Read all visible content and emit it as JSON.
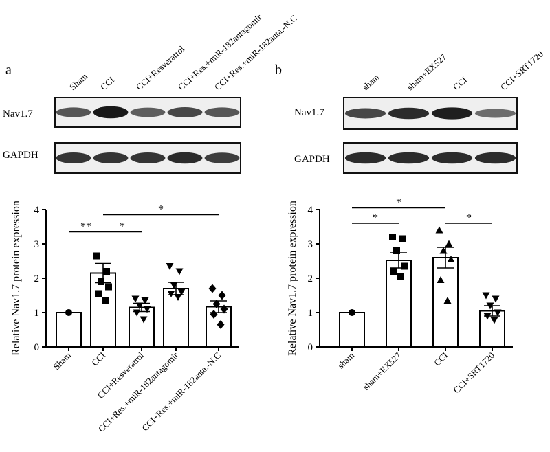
{
  "panels": {
    "a": {
      "letter": "a"
    },
    "b": {
      "letter": "b"
    }
  },
  "chart_data": [
    {
      "panel": "a",
      "type": "bar",
      "blot": {
        "lanes": [
          "Sham",
          "CCI",
          "CCI+Resveratrol",
          "CCI+Res.+miR-182antagomir",
          "CCI+Res.+miR-182anta.-N.C"
        ],
        "rows": [
          {
            "label": "Nav1.7",
            "intensities": [
              0.62,
              0.95,
              0.58,
              0.7,
              0.62
            ]
          },
          {
            "label": "GAPDH",
            "intensities": [
              0.8,
              0.8,
              0.8,
              0.85,
              0.75
            ]
          }
        ]
      },
      "categories": [
        "Sham",
        "CCI",
        "CCI+Resveratrol",
        "CCI+Res.+miR-182antagomir",
        "CCI+Res.+miR-182anta.-N.C"
      ],
      "values": [
        1.0,
        2.15,
        1.15,
        1.7,
        1.17
      ],
      "errors": [
        0.0,
        0.28,
        0.12,
        0.18,
        0.17
      ],
      "markers": [
        "circle",
        "square",
        "triangle-down",
        "triangle-down",
        "diamond"
      ],
      "points": [
        [
          1.0
        ],
        [
          2.65,
          2.2,
          1.9,
          1.75,
          1.55,
          1.35
        ],
        [
          1.4,
          1.35,
          1.2,
          1.1,
          1.0,
          0.8
        ],
        [
          2.35,
          2.2,
          1.8,
          1.6,
          1.55,
          1.45
        ],
        [
          1.7,
          1.5,
          1.25,
          1.1,
          0.95,
          0.65
        ]
      ],
      "ylabel": "Relative Nav1.7 protein expression",
      "ylim": [
        0,
        4
      ],
      "yticks": [
        "0",
        "1",
        "2",
        "3",
        "4"
      ],
      "significance": [
        {
          "from": 0,
          "to": 1,
          "level": 3.35,
          "label": "**"
        },
        {
          "from": 1,
          "to": 2,
          "level": 3.35,
          "label": "*"
        },
        {
          "from": 1,
          "to": 4,
          "level": 3.85,
          "label": "*"
        }
      ]
    },
    {
      "panel": "b",
      "type": "bar",
      "blot": {
        "lanes": [
          "sham",
          "sham+EX527",
          "CCI",
          "CCI+SRT1720"
        ],
        "rows": [
          {
            "label": "Nav1.7",
            "intensities": [
              0.7,
              0.85,
              0.92,
              0.5
            ]
          },
          {
            "label": "GAPDH",
            "intensities": [
              0.85,
              0.85,
              0.85,
              0.85
            ]
          }
        ]
      },
      "categories": [
        "sham",
        "sham+EX527",
        "CCI",
        "CCI+SRT1720"
      ],
      "values": [
        1.0,
        2.52,
        2.6,
        1.05
      ],
      "errors": [
        0.0,
        0.22,
        0.3,
        0.15
      ],
      "markers": [
        "circle",
        "square",
        "triangle-up",
        "triangle-down"
      ],
      "points": [
        [
          1.0
        ],
        [
          3.2,
          3.15,
          2.8,
          2.35,
          2.2,
          2.05
        ],
        [
          3.4,
          3.0,
          2.8,
          2.55,
          1.95,
          1.35
        ],
        [
          1.5,
          1.4,
          1.2,
          1.0,
          0.9,
          0.78
        ]
      ],
      "ylabel": "Relative Nav1.7 protein expression",
      "ylim": [
        0,
        4
      ],
      "yticks": [
        "0",
        "1",
        "2",
        "3",
        "4"
      ],
      "significance": [
        {
          "from": 0,
          "to": 1,
          "level": 3.6,
          "label": "*"
        },
        {
          "from": 2,
          "to": 3,
          "level": 3.6,
          "label": "*"
        },
        {
          "from": 0,
          "to": 2,
          "level": 4.05,
          "label": "*"
        }
      ]
    }
  ]
}
